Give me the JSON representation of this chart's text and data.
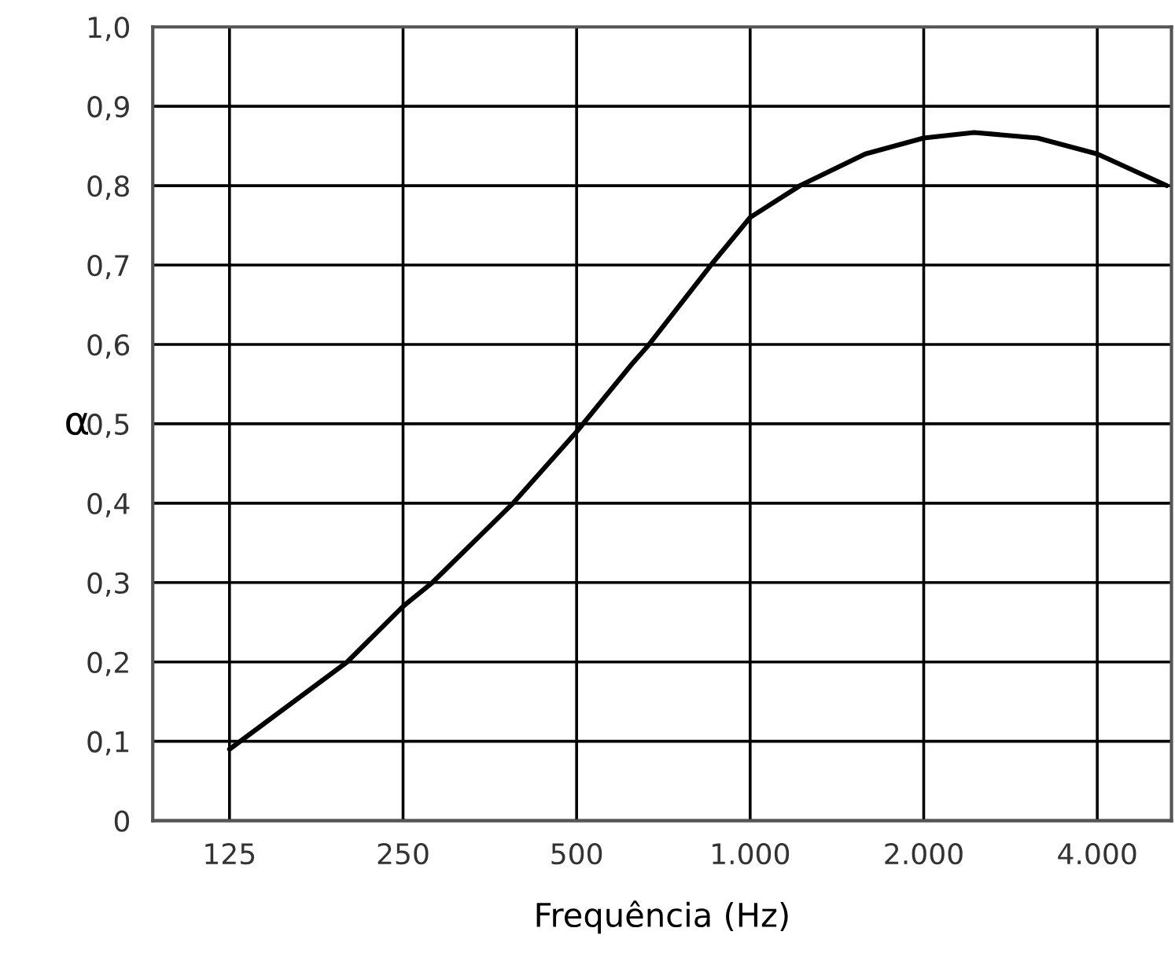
{
  "chart_data": {
    "type": "line",
    "xlabel": "Frequência (Hz)",
    "ylabel": "α",
    "log": "x",
    "grid": true,
    "marker": "none",
    "line_style": "solid",
    "x": [
      125,
      200,
      250,
      281,
      388,
      500,
      623,
      668,
      855,
      1000,
      1220,
      1584,
      2000,
      2446,
      3150,
      4000,
      5278
    ],
    "series": [
      {
        "color": "#000000",
        "values": [
          0.09,
          0.2,
          0.27,
          0.3,
          0.4,
          0.49,
          0.575,
          0.6,
          0.7,
          0.76,
          0.8,
          0.84,
          0.86,
          0.867,
          0.86,
          0.84,
          0.8
        ]
      }
    ],
    "xlim": [
      92,
      5380
    ],
    "xticks": [
      125,
      250,
      500,
      {
        "value": 1000,
        "label": "1.000"
      },
      {
        "value": 2000,
        "label": "2.000"
      },
      {
        "value": 4000,
        "label": "4.000"
      }
    ],
    "ylim": [
      0,
      1
    ],
    "yticks": [
      {
        "value": 0,
        "label": "0"
      },
      {
        "value": 0.1,
        "label": "0,1"
      },
      {
        "value": 0.2,
        "label": "0,2"
      },
      {
        "value": 0.3,
        "label": "0,3"
      },
      {
        "value": 0.4,
        "label": "0,4"
      },
      {
        "value": 0.5,
        "label": "0,5"
      },
      {
        "value": 0.6,
        "label": "0,6"
      },
      {
        "value": 0.7,
        "label": "0,7"
      },
      {
        "value": 0.8,
        "label": "0,8"
      },
      {
        "value": 0.9,
        "label": "0,9"
      },
      {
        "value": 1,
        "label": "1,0"
      }
    ]
  }
}
